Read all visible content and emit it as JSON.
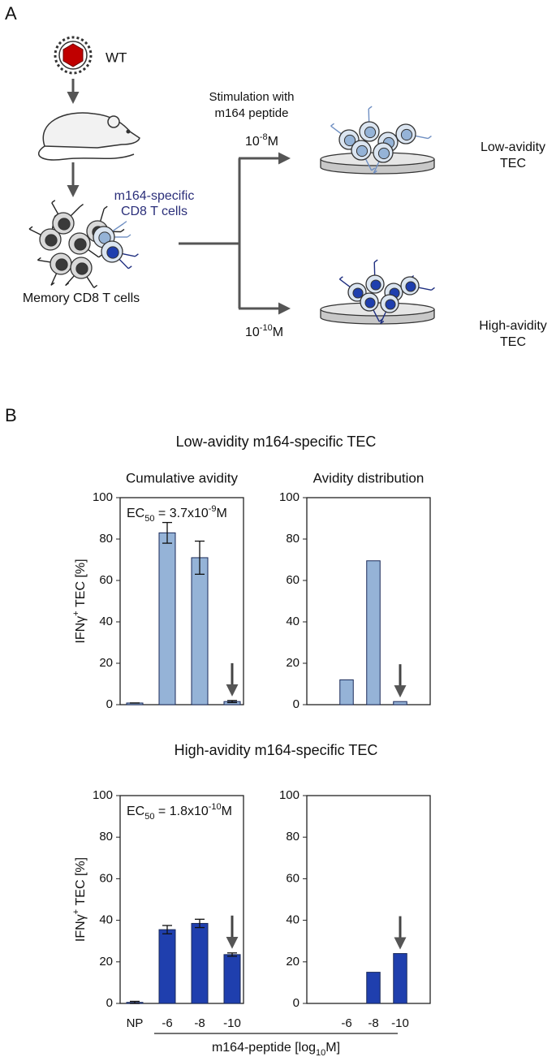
{
  "panel_a": {
    "label": "A",
    "virus_label": "WT",
    "stimulation": [
      "Stimulation with",
      "m164 peptide"
    ],
    "specific_cells": [
      "m164-specific",
      "CD8 T cells"
    ],
    "memory_cells": "Memory CD8 T cells",
    "low_dose": {
      "base": "10",
      "exp": "-8",
      "unit": "M"
    },
    "high_dose": {
      "base": "10",
      "exp": "-10",
      "unit": "M"
    },
    "low_result": [
      "Low-avidity",
      "TEC"
    ],
    "high_result": [
      "High-avidity",
      "TEC"
    ]
  },
  "panel_b": {
    "label": "B",
    "groups": [
      "Low-avidity m164-specific TEC",
      "High-avidity m164-specific TEC"
    ],
    "y_label": {
      "main": "IFNγ",
      "sup": "+",
      "rest": " TEC [%]"
    },
    "x_label": {
      "main": "m164-peptide [log",
      "sub": "10",
      "rest": "M]"
    }
  },
  "chart_data": [
    {
      "type": "bar",
      "title": "Cumulative avidity",
      "annotation": {
        "main": "EC",
        "sub": "50",
        "mid": " = 3.7x10",
        "sup": "-9",
        "unit": "M"
      },
      "categories": [
        null,
        null,
        null,
        null
      ],
      "values": [
        0.8,
        83,
        71,
        1.5
      ],
      "errors": [
        0,
        5,
        8,
        0.5
      ],
      "color": "#95b3d7",
      "ylim": [
        0,
        100
      ],
      "yticks": [
        0,
        20,
        40,
        60,
        80,
        100
      ]
    },
    {
      "type": "bar",
      "title": "Avidity distribution",
      "categories": [
        null,
        null,
        null
      ],
      "values": [
        12,
        69.5,
        1.5
      ],
      "color": "#95b3d7",
      "ylim": [
        0,
        100
      ],
      "yticks": [
        0,
        20,
        40,
        60,
        80,
        100
      ]
    },
    {
      "type": "bar",
      "annotation": {
        "main": "EC",
        "sub": "50",
        "mid": " = 1.8x10",
        "sup": "-10",
        "unit": "M"
      },
      "categories": [
        "NP",
        "-6",
        "-8",
        "-10"
      ],
      "values": [
        0.5,
        35.5,
        38.5,
        23.5
      ],
      "errors": [
        0.5,
        2,
        2,
        0.8
      ],
      "color": "#1f3fae",
      "ylim": [
        0,
        100
      ],
      "yticks": [
        0,
        20,
        40,
        60,
        80,
        100
      ]
    },
    {
      "type": "bar",
      "categories": [
        "-6",
        "-8",
        "-10"
      ],
      "values": [
        0,
        15,
        24
      ],
      "color": "#1f3fae",
      "ylim": [
        0,
        100
      ],
      "yticks": [
        0,
        20,
        40,
        60,
        80,
        100
      ]
    }
  ]
}
